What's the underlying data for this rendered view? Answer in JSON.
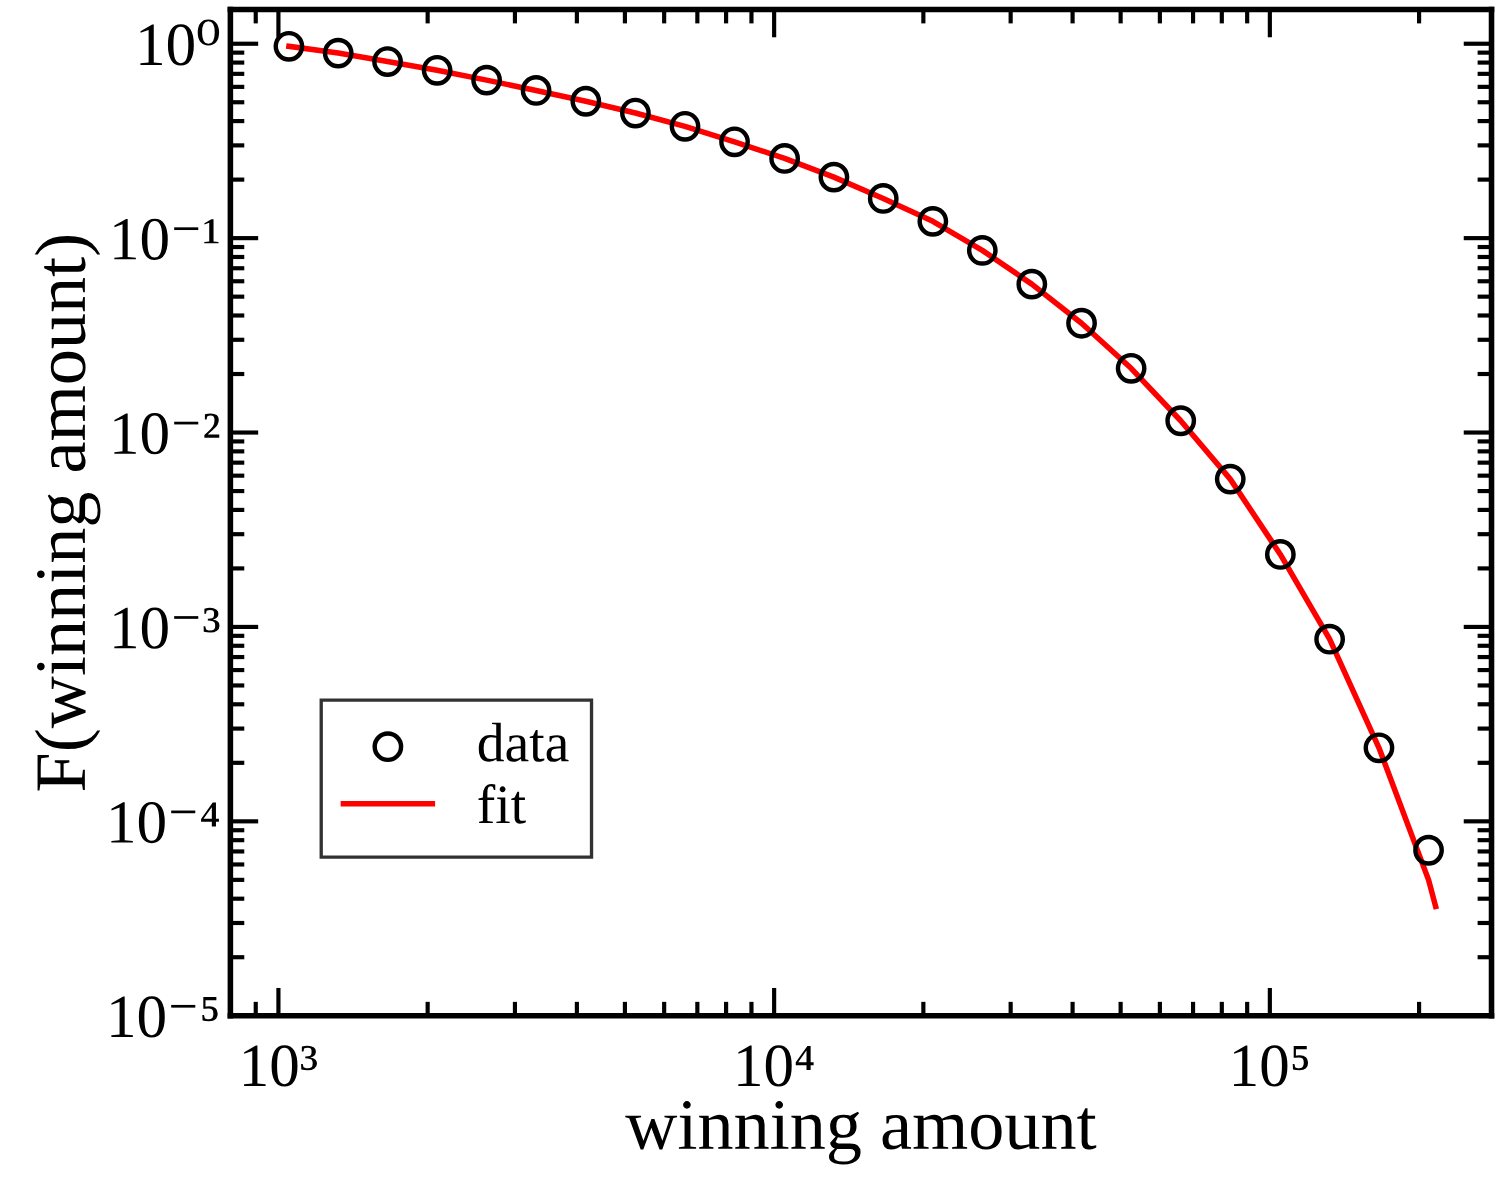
{
  "chart_data": {
    "type": "scatter",
    "xlabel": "winning amount",
    "ylabel": "F(winning amount)",
    "log": "xy",
    "grid": false,
    "legend": "bottom left",
    "xlim": [
      800,
      280000
    ],
    "ylim": [
      1e-05,
      1.5
    ],
    "xticks": [
      {
        "value": 1000,
        "label": "10³"
      },
      {
        "value": 10000,
        "label": "10⁴"
      },
      {
        "value": 100000,
        "label": "10⁵"
      }
    ],
    "yticks": [
      {
        "value": 1e-05,
        "label": "10⁻⁵"
      },
      {
        "value": 0.0001,
        "label": "10⁻⁴"
      },
      {
        "value": 0.001,
        "label": "10⁻³"
      },
      {
        "value": 0.01,
        "label": "10⁻²"
      },
      {
        "value": 0.1,
        "label": "10⁻¹"
      },
      {
        "value": 1,
        "label": "10⁰"
      }
    ],
    "series": [
      {
        "name": "data",
        "marker": "circle",
        "color": "#000000",
        "x": [
          1050,
          1320,
          1660,
          2090,
          2630,
          3310,
          4170,
          5250,
          6610,
          8320,
          10500,
          13200,
          16600,
          20900,
          26300,
          33100,
          41700,
          52500,
          66100,
          83200,
          105000,
          132000,
          166000,
          209000
        ],
        "values": [
          0.97,
          0.895,
          0.81,
          0.73,
          0.65,
          0.575,
          0.506,
          0.44,
          0.376,
          0.313,
          0.257,
          0.206,
          0.16,
          0.122,
          0.0865,
          0.058,
          0.0365,
          0.0214,
          0.0115,
          0.00576,
          0.00236,
          0.000865,
          0.000239,
          7.1e-05
        ]
      },
      {
        "name": "fit",
        "type": "line",
        "marker": "none",
        "line_style": "solid",
        "color": "#ff0000",
        "x": [
          1050,
          1320,
          1660,
          2090,
          2630,
          3310,
          4170,
          5250,
          6610,
          8320,
          10500,
          13200,
          16600,
          20900,
          26300,
          33100,
          41700,
          52500,
          66100,
          83200,
          105000,
          132000,
          166000,
          209000,
          216000
        ],
        "values": [
          0.97,
          0.895,
          0.81,
          0.73,
          0.65,
          0.575,
          0.506,
          0.44,
          0.376,
          0.313,
          0.257,
          0.206,
          0.16,
          0.122,
          0.0865,
          0.058,
          0.0365,
          0.0214,
          0.0115,
          0.00576,
          0.00236,
          0.000865,
          0.000239,
          5e-05,
          3.65e-05
        ]
      }
    ]
  }
}
